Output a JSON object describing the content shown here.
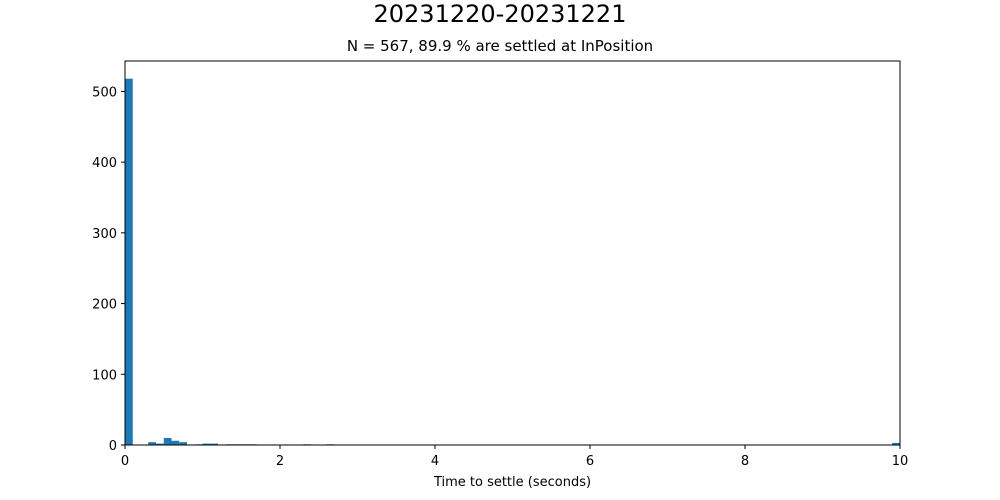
{
  "chart_data": {
    "type": "bar",
    "title": "20231220-20231221",
    "subtitle": "N = 567, 89.9 % are settled at InPosition",
    "xlabel": "Time to settle (seconds)",
    "ylabel": "",
    "xlim": [
      0,
      10
    ],
    "ylim": [
      0,
      543
    ],
    "xticks": [
      0,
      2,
      4,
      6,
      8,
      10
    ],
    "yticks": [
      0,
      100,
      200,
      300,
      400,
      500
    ],
    "bin_width": 0.1,
    "bins": [
      {
        "x": 0.0,
        "count": 518
      },
      {
        "x": 0.3,
        "count": 4
      },
      {
        "x": 0.4,
        "count": 2
      },
      {
        "x": 0.5,
        "count": 10
      },
      {
        "x": 0.6,
        "count": 6
      },
      {
        "x": 0.7,
        "count": 4
      },
      {
        "x": 0.9,
        "count": 1
      },
      {
        "x": 1.0,
        "count": 2
      },
      {
        "x": 1.1,
        "count": 2
      },
      {
        "x": 1.3,
        "count": 1
      },
      {
        "x": 1.4,
        "count": 1
      },
      {
        "x": 1.5,
        "count": 1
      },
      {
        "x": 1.6,
        "count": 1
      },
      {
        "x": 2.3,
        "count": 1
      },
      {
        "x": 2.6,
        "count": 1
      },
      {
        "x": 9.9,
        "count": 3
      }
    ],
    "bar_color": "#1f77b4",
    "grid": false
  }
}
